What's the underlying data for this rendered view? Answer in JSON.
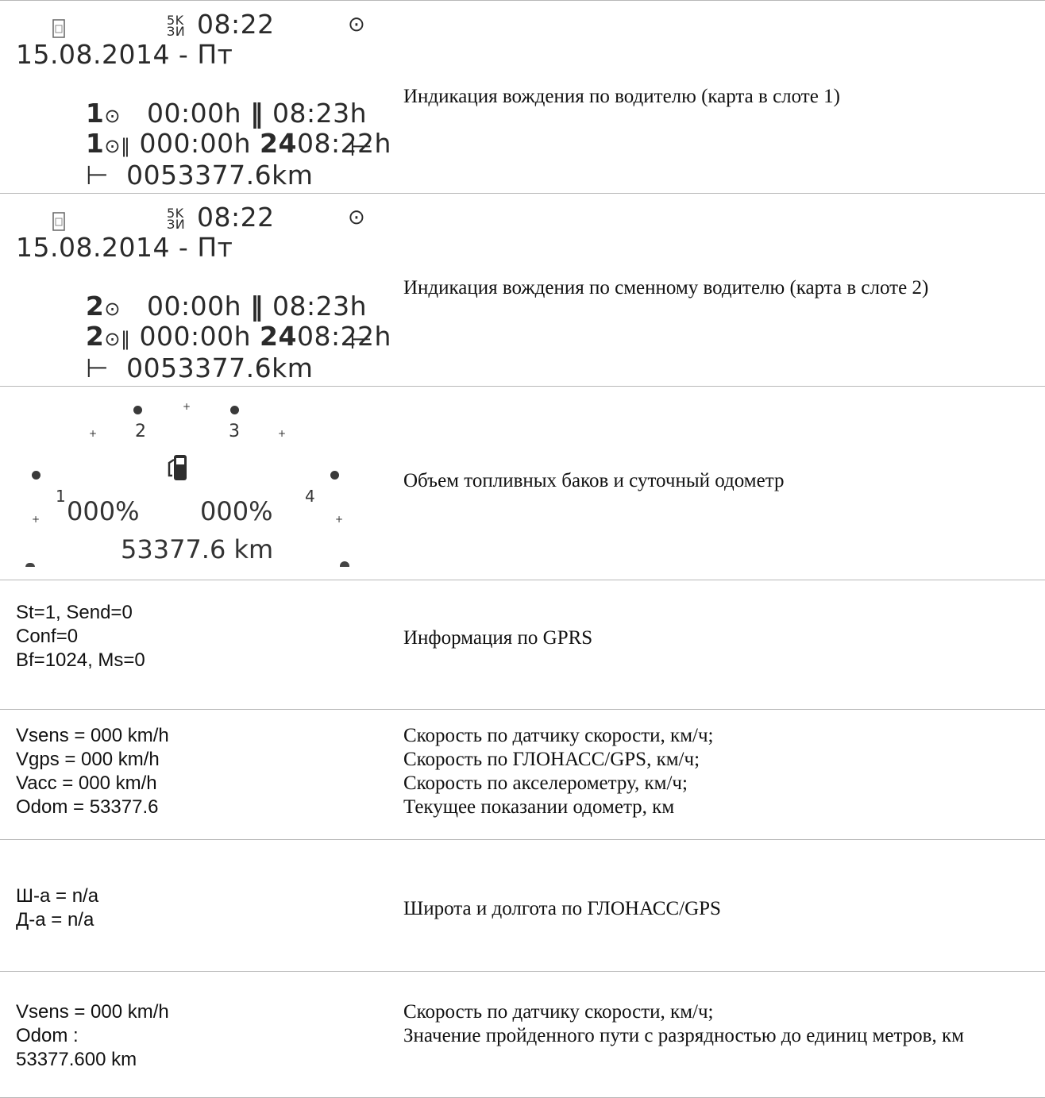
{
  "rows": [
    {
      "lcd": {
        "time": "08:22",
        "date": "15.08.2014 - Пт",
        "line3_num": "1",
        "line3_a": "00:00h",
        "line3_b": "08:23h",
        "line4_num": "1",
        "line4_a": "000:00h",
        "line4_24": "24",
        "line4_b": "08:22h",
        "odometer": "0053377.6km"
      },
      "description": "Индикация вождения по водителю (карта в слоте 1)"
    },
    {
      "lcd": {
        "time": "08:22",
        "date": "15.08.2014 - Пт",
        "line3_num": "2",
        "line3_a": "00:00h",
        "line3_b": "08:23h",
        "line4_num": "2",
        "line4_a": "000:00h",
        "line4_24": "24",
        "line4_b": "08:22h",
        "odometer": "0053377.6km"
      },
      "description": "Индикация вождения по сменному водителю (карта в слоте 2)"
    },
    {
      "fuel": {
        "tank1": "1",
        "tank2": "2",
        "tank3": "3",
        "tank4": "4",
        "left_pct": "000%",
        "right_pct": "000%",
        "km": "53377.6 km"
      },
      "description": "Объем топливных баков и суточный одометр"
    },
    {
      "lines": [
        "St=1, Send=0",
        "Conf=0",
        "Bf=1024, Ms=0"
      ],
      "description": "Информация по GPRS"
    },
    {
      "lines": [
        "Vsens = 000 km/h",
        "Vgps = 000 km/h",
        "Vacc = 000 km/h",
        "Odom = 53377.6"
      ],
      "desc_lines": [
        "Скорость по датчику скорости, км/ч;",
        "Скорость по ГЛОНАСС/GPS, км/ч;",
        "Скорость по акселерометру, км/ч;",
        "Текущее показании одометр, км"
      ]
    },
    {
      "lines": [
        "Ш-а = n/a",
        "Д-а = n/a"
      ],
      "description": "Широта и долгота по ГЛОНАСС/GPS"
    },
    {
      "lines": [
        "Vsens = 000 km/h",
        "Odom :",
        "53377.600 km"
      ],
      "desc_line1": "Скорость по датчику скорости, км/ч;",
      "desc_line2": "Значение пройденного пути с разрядностью до единиц метров, км"
    }
  ]
}
